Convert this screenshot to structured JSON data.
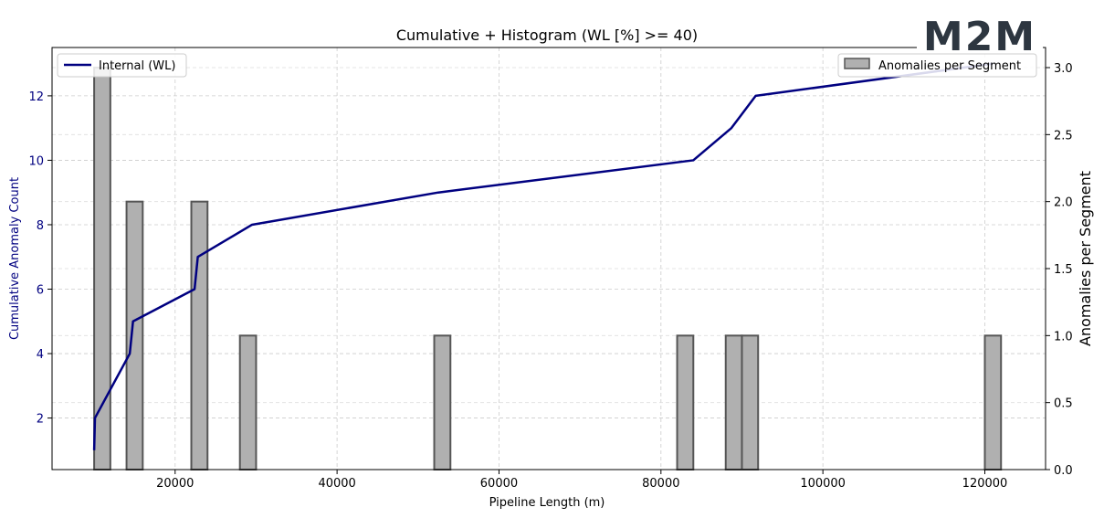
{
  "chart_data": {
    "type": "bar+line",
    "title": "Cumulative + Histogram (WL [%] >= 40)",
    "xlabel": "Pipeline Length (m)",
    "ylabel_left": "Cumulative Anomaly Count",
    "ylabel_right": "Anomalies per Segment",
    "xlim": [
      4800,
      127500
    ],
    "ylim_left": [
      0.4,
      13.5
    ],
    "ylim_right": [
      0,
      3.15
    ],
    "x_ticks": [
      20000,
      40000,
      60000,
      80000,
      100000,
      120000
    ],
    "y_left_ticks": [
      2,
      4,
      6,
      8,
      10,
      12
    ],
    "y_right_ticks": [
      0.0,
      0.5,
      1.0,
      1.5,
      2.0,
      2.5,
      3.0
    ],
    "grid": true,
    "line_series": {
      "name": "Internal (WL)",
      "color": "#000080",
      "x": [
        10000,
        10100,
        14400,
        14800,
        22400,
        22800,
        29500,
        52500,
        84000,
        88700,
        91700,
        121000
      ],
      "y": [
        1,
        2,
        4,
        5,
        6,
        7,
        8,
        9,
        10,
        11,
        12,
        13
      ]
    },
    "bar_series": {
      "name": "Anomalies per Segment",
      "color": "#b0b0b0",
      "edge_color": "#555555",
      "bin_width": 2000,
      "bin_centers": [
        11000,
        15000,
        23000,
        29000,
        53000,
        83000,
        89000,
        91000,
        121000
      ],
      "values": [
        3,
        2,
        2,
        1,
        1,
        1,
        1,
        1,
        1
      ]
    },
    "legend_left_position": "top-left",
    "legend_right_position": "top-right"
  },
  "logo": {
    "text": "M2M",
    "color": "#2d3640"
  }
}
